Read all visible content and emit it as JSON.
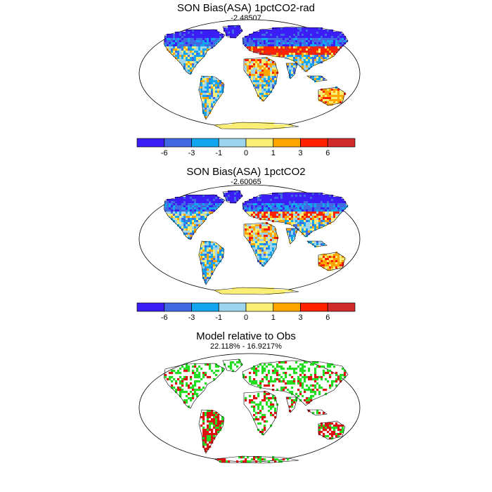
{
  "panels": [
    {
      "title": "SON Bias(ASA) 1pctCO2-rad",
      "subtitle": "-2.48507"
    },
    {
      "title": "SON Bias(ASA) 1pctCO2",
      "subtitle": "-2.60065"
    },
    {
      "title": "Model relative to Obs",
      "subtitle": "22.118% - 16.9217%"
    }
  ],
  "colorbar": {
    "colors": [
      "#3a1ef5",
      "#4169e1",
      "#12a6f0",
      "#9dd3ec",
      "#fbee74",
      "#ffa500",
      "#ff2200",
      "#d22b2b"
    ],
    "tick_labels": [
      "-6",
      "-3",
      "-1",
      "0",
      "1",
      "3",
      "6"
    ]
  },
  "agreement_colors": {
    "model_better": "#22dd22",
    "model_worse": "#dd1111"
  }
}
